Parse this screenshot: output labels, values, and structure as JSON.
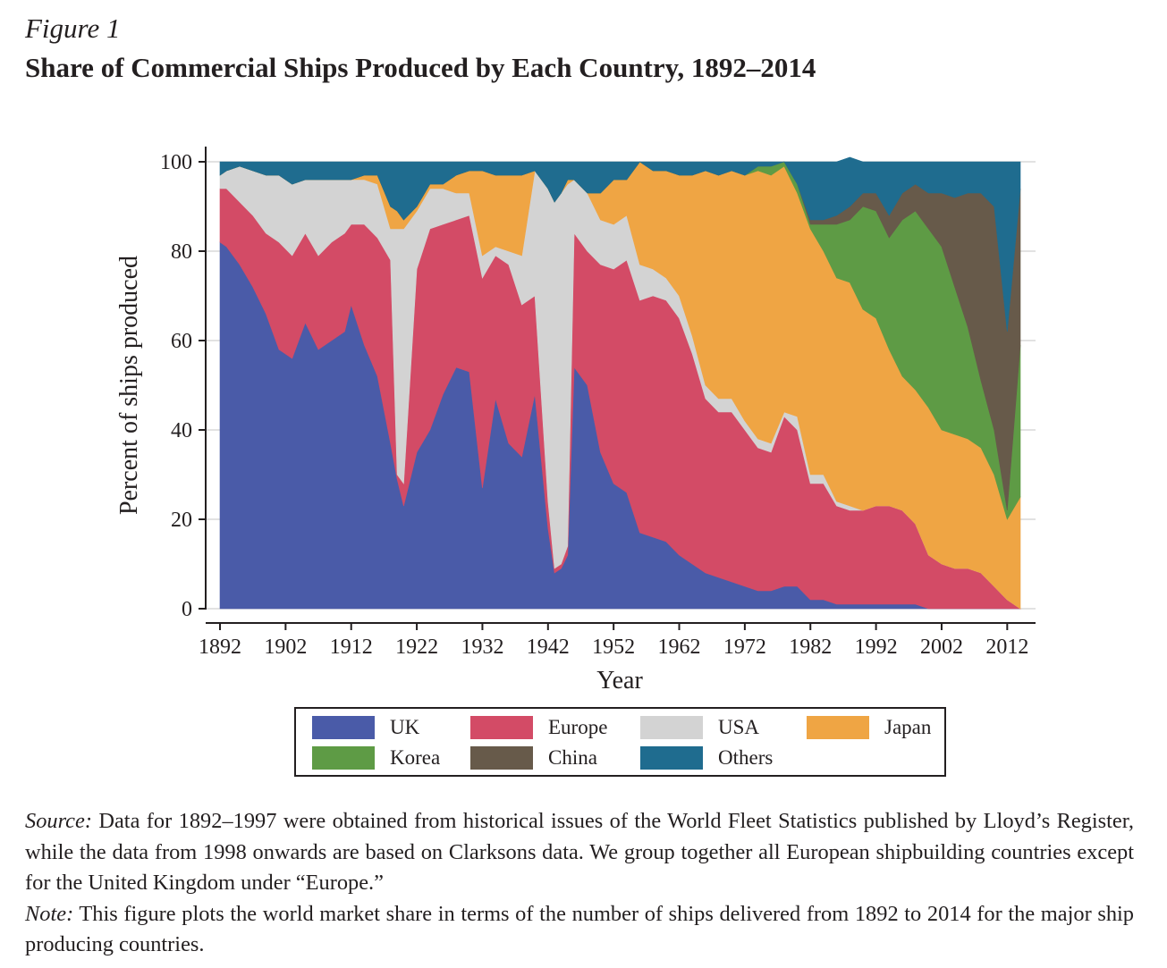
{
  "figure_label": "Figure 1",
  "figure_title": "Share of Commercial Ships Produced by Each Country, 1892–2014",
  "chart_data": {
    "type": "area",
    "stacked": true,
    "xlabel": "Year",
    "ylabel": "Percent of ships produced",
    "xlim": [
      1892,
      2014
    ],
    "ylim": [
      0,
      100
    ],
    "x_ticks": [
      1892,
      1902,
      1912,
      1922,
      1932,
      1942,
      1952,
      1962,
      1972,
      1982,
      1992,
      2002,
      2012
    ],
    "y_ticks": [
      0,
      20,
      40,
      60,
      80,
      100
    ],
    "grid": "horizontal",
    "legend_position": "bottom",
    "x": [
      1892,
      1893,
      1895,
      1897,
      1899,
      1901,
      1903,
      1905,
      1907,
      1909,
      1911,
      1912,
      1914,
      1916,
      1918,
      1919,
      1920,
      1922,
      1924,
      1926,
      1928,
      1930,
      1932,
      1934,
      1936,
      1938,
      1940,
      1942,
      1943,
      1944,
      1945,
      1946,
      1948,
      1950,
      1952,
      1954,
      1956,
      1958,
      1960,
      1962,
      1964,
      1966,
      1968,
      1970,
      1972,
      1974,
      1976,
      1978,
      1980,
      1982,
      1984,
      1986,
      1988,
      1990,
      1992,
      1994,
      1996,
      1998,
      2000,
      2002,
      2004,
      2006,
      2008,
      2010,
      2012,
      2014
    ],
    "series": [
      {
        "name": "UK",
        "color": "#4a5ba8",
        "values": [
          82,
          81,
          77,
          72,
          66,
          58,
          56,
          64,
          58,
          60,
          62,
          68,
          59,
          52,
          37,
          29,
          23,
          35,
          40,
          48,
          54,
          53,
          27,
          47,
          37,
          34,
          48,
          18,
          8,
          9,
          12,
          54,
          50,
          35,
          28,
          26,
          17,
          16,
          15,
          12,
          10,
          8,
          7,
          6,
          5,
          4,
          4,
          5,
          5,
          2,
          2,
          1,
          1,
          1,
          1,
          1,
          1,
          1,
          0,
          0,
          0,
          0,
          0,
          0,
          0,
          0
        ]
      },
      {
        "name": "Europe",
        "color": "#d34b66",
        "values": [
          12,
          13,
          14,
          16,
          18,
          24,
          23,
          20,
          21,
          22,
          22,
          18,
          27,
          31,
          41,
          1,
          5,
          41,
          45,
          38,
          33,
          35,
          47,
          32,
          40,
          34,
          22,
          6,
          1,
          1,
          2,
          30,
          30,
          42,
          48,
          52,
          52,
          54,
          54,
          53,
          47,
          39,
          37,
          38,
          35,
          32,
          31,
          38,
          35,
          26,
          26,
          22,
          21,
          21,
          22,
          22,
          21,
          18,
          12,
          10,
          9,
          9,
          8,
          5,
          2,
          0
        ]
      },
      {
        "name": "USA",
        "color": "#d3d3d3",
        "values": [
          3,
          4,
          8,
          10,
          13,
          15,
          16,
          12,
          17,
          14,
          12,
          10,
          10,
          12,
          7,
          55,
          57,
          13,
          9,
          8,
          6,
          5,
          5,
          2,
          3,
          11,
          28,
          70,
          82,
          83,
          81,
          12,
          13,
          10,
          10,
          10,
          8,
          6,
          5,
          5,
          4,
          3,
          3,
          3,
          2,
          2,
          2,
          1,
          3,
          2,
          2,
          1,
          1,
          0,
          0,
          0,
          0,
          0,
          0,
          0,
          0,
          0,
          0,
          0,
          0,
          0
        ]
      },
      {
        "name": "Japan",
        "color": "#efa544",
        "values": [
          0,
          0,
          0,
          0,
          0,
          0,
          0,
          0,
          0,
          0,
          0,
          0,
          1,
          2,
          5,
          4,
          2,
          1,
          1,
          1,
          4,
          5,
          19,
          16,
          17,
          18,
          0,
          0,
          0,
          0,
          1,
          0,
          0,
          6,
          10,
          8,
          23,
          22,
          24,
          27,
          36,
          48,
          50,
          51,
          55,
          60,
          60,
          55,
          50,
          55,
          50,
          50,
          50,
          45,
          42,
          35,
          30,
          30,
          33,
          30,
          30,
          29,
          28,
          25,
          18,
          25
        ]
      },
      {
        "name": "Korea",
        "color": "#5e9b45",
        "values": [
          0,
          0,
          0,
          0,
          0,
          0,
          0,
          0,
          0,
          0,
          0,
          0,
          0,
          0,
          0,
          0,
          0,
          0,
          0,
          0,
          0,
          0,
          0,
          0,
          0,
          0,
          0,
          0,
          0,
          0,
          0,
          0,
          0,
          0,
          0,
          0,
          0,
          0,
          0,
          0,
          0,
          0,
          0,
          0,
          0,
          1,
          2,
          1,
          2,
          1,
          6,
          12,
          14,
          23,
          24,
          25,
          35,
          40,
          40,
          41,
          33,
          25,
          15,
          10,
          2,
          34
        ]
      },
      {
        "name": "China",
        "color": "#675a4a",
        "values": [
          0,
          0,
          0,
          0,
          0,
          0,
          0,
          0,
          0,
          0,
          0,
          0,
          0,
          0,
          0,
          0,
          0,
          0,
          0,
          0,
          0,
          0,
          0,
          0,
          0,
          0,
          0,
          0,
          0,
          0,
          0,
          0,
          0,
          0,
          0,
          0,
          0,
          0,
          0,
          0,
          0,
          0,
          0,
          0,
          0,
          0,
          0,
          0,
          0,
          1,
          1,
          2,
          3,
          3,
          4,
          5,
          6,
          6,
          8,
          12,
          20,
          30,
          42,
          50,
          40,
          35
        ]
      },
      {
        "name": "Others",
        "color": "#1f6c8f",
        "values": [
          3,
          2,
          1,
          2,
          3,
          3,
          5,
          4,
          4,
          4,
          4,
          4,
          3,
          3,
          10,
          11,
          13,
          10,
          5,
          5,
          3,
          2,
          2,
          3,
          3,
          3,
          2,
          6,
          9,
          7,
          4,
          4,
          7,
          7,
          4,
          4,
          0,
          2,
          2,
          3,
          3,
          2,
          3,
          2,
          3,
          1,
          1,
          0,
          5,
          13,
          13,
          12,
          11,
          7,
          7,
          12,
          7,
          5,
          7,
          7,
          8,
          7,
          7,
          10,
          38,
          6
        ]
      }
    ]
  },
  "legend": [
    {
      "label": "UK",
      "color": "#4a5ba8"
    },
    {
      "label": "Europe",
      "color": "#d34b66"
    },
    {
      "label": "USA",
      "color": "#d3d3d3"
    },
    {
      "label": "Japan",
      "color": "#efa544"
    },
    {
      "label": "Korea",
      "color": "#5e9b45"
    },
    {
      "label": "China",
      "color": "#675a4a"
    },
    {
      "label": "Others",
      "color": "#1f6c8f"
    }
  ],
  "notes": {
    "source_label": "Source:",
    "source_text": " Data for 1892–1997 were obtained from historical issues of the World Fleet Statistics published by Lloyd’s Register, while the data from 1998 onwards are based on Clarksons data. We group together all European shipbuilding countries except for the United Kingdom under “Europe.”",
    "note_label": "Note:",
    "note_text": " This figure plots the world market share in terms of the number of ships delivered from 1892 to 2014 for the major ship producing countries."
  }
}
